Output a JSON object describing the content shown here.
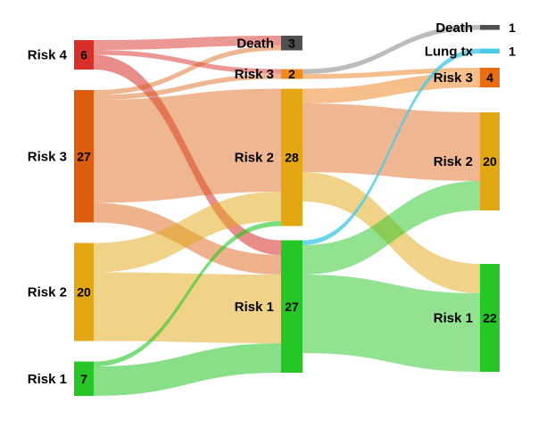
{
  "chart_data": {
    "type": "sankey",
    "title": "",
    "legend": "none",
    "columns": [
      {
        "id": "t1",
        "nodes": [
          {
            "name": "Risk 4",
            "value": 6,
            "color": "#d7302a"
          },
          {
            "name": "Risk 3",
            "value": 27,
            "color": "#dc5e0e"
          },
          {
            "name": "Risk 2",
            "value": 20,
            "color": "#e2a713"
          },
          {
            "name": "Risk 1",
            "value": 7,
            "color": "#25c625"
          }
        ]
      },
      {
        "id": "t2",
        "nodes": [
          {
            "name": "Death",
            "value": 3,
            "color": "#4f4f4f"
          },
          {
            "name": "Risk 3",
            "value": 2,
            "color": "#f08a18"
          },
          {
            "name": "Risk 2",
            "value": 28,
            "color": "#e2a713"
          },
          {
            "name": "Risk 1",
            "value": 27,
            "color": "#25c625"
          }
        ]
      },
      {
        "id": "t3",
        "nodes": [
          {
            "name": "Death",
            "value": 1,
            "color": "#4f4f4f"
          },
          {
            "name": "Lung tx",
            "value": 1,
            "color": "#49cbe3"
          },
          {
            "name": "Risk 3",
            "value": 4,
            "color": "#ea6d12"
          },
          {
            "name": "Risk 2",
            "value": 20,
            "color": "#e2a713"
          },
          {
            "name": "Risk 1",
            "value": 22,
            "color": "#25c625"
          }
        ]
      }
    ],
    "links": [
      {
        "from": {
          "col": "t1",
          "node": "Risk 4"
        },
        "to": {
          "col": "t2",
          "node": "Death"
        },
        "value": 2,
        "color": "#d7302a",
        "opacity": 0.5
      },
      {
        "from": {
          "col": "t1",
          "node": "Risk 4"
        },
        "to": {
          "col": "t2",
          "node": "Risk 3"
        },
        "value": 1,
        "color": "#d7302a",
        "opacity": 0.5
      },
      {
        "from": {
          "col": "t1",
          "node": "Risk 4"
        },
        "to": {
          "col": "t2",
          "node": "Risk 1"
        },
        "value": 3,
        "color": "#d7302a",
        "opacity": 0.55
      },
      {
        "from": {
          "col": "t1",
          "node": "Risk 3"
        },
        "to": {
          "col": "t2",
          "node": "Death"
        },
        "value": 1,
        "color": "#dc5e0e",
        "opacity": 0.45
      },
      {
        "from": {
          "col": "t1",
          "node": "Risk 3"
        },
        "to": {
          "col": "t2",
          "node": "Risk 3"
        },
        "value": 1,
        "color": "#dc5e0e",
        "opacity": 0.45
      },
      {
        "from": {
          "col": "t1",
          "node": "Risk 3"
        },
        "to": {
          "col": "t2",
          "node": "Risk 2"
        },
        "value": 21,
        "color": "#dc5e0e",
        "opacity": 0.45
      },
      {
        "from": {
          "col": "t1",
          "node": "Risk 3"
        },
        "to": {
          "col": "t2",
          "node": "Risk 1"
        },
        "value": 4,
        "color": "#dc5e0e",
        "opacity": 0.48
      },
      {
        "from": {
          "col": "t1",
          "node": "Risk 2"
        },
        "to": {
          "col": "t2",
          "node": "Risk 2"
        },
        "value": 6,
        "color": "#e2a713",
        "opacity": 0.5
      },
      {
        "from": {
          "col": "t1",
          "node": "Risk 2"
        },
        "to": {
          "col": "t2",
          "node": "Risk 1"
        },
        "value": 14,
        "color": "#e2a713",
        "opacity": 0.5
      },
      {
        "from": {
          "col": "t1",
          "node": "Risk 1"
        },
        "to": {
          "col": "t2",
          "node": "Risk 2"
        },
        "value": 1,
        "color": "#25c625",
        "opacity": 0.6
      },
      {
        "from": {
          "col": "t1",
          "node": "Risk 1"
        },
        "to": {
          "col": "t2",
          "node": "Risk 1"
        },
        "value": 6,
        "color": "#25c625",
        "opacity": 0.55
      },
      {
        "from": {
          "col": "t2",
          "node": "Risk 3"
        },
        "to": {
          "col": "t3",
          "node": "Death"
        },
        "value": 1,
        "color": "#b0b0b0",
        "opacity": 0.85
      },
      {
        "from": {
          "col": "t2",
          "node": "Risk 3"
        },
        "to": {
          "col": "t3",
          "node": "Risk 3"
        },
        "value": 1,
        "color": "#ee7d16",
        "opacity": 0.5
      },
      {
        "from": {
          "col": "t2",
          "node": "Risk 2"
        },
        "to": {
          "col": "t3",
          "node": "Risk 3"
        },
        "value": 3,
        "color": "#ee7d16",
        "opacity": 0.5
      },
      {
        "from": {
          "col": "t2",
          "node": "Risk 2"
        },
        "to": {
          "col": "t3",
          "node": "Risk 2"
        },
        "value": 14,
        "color": "#dc5e0e",
        "opacity": 0.45
      },
      {
        "from": {
          "col": "t2",
          "node": "Risk 2"
        },
        "to": {
          "col": "t3",
          "node": "Risk 1"
        },
        "value": 6,
        "color": "#e2a713",
        "opacity": 0.5
      },
      {
        "from": {
          "col": "t2",
          "node": "Risk 1"
        },
        "to": {
          "col": "t3",
          "node": "Lung tx"
        },
        "value": 1,
        "color": "#49cbe3",
        "opacity": 0.8
      },
      {
        "from": {
          "col": "t2",
          "node": "Risk 1"
        },
        "to": {
          "col": "t3",
          "node": "Risk 2"
        },
        "value": 6,
        "color": "#25c625",
        "opacity": 0.5
      },
      {
        "from": {
          "col": "t2",
          "node": "Risk 1"
        },
        "to": {
          "col": "t3",
          "node": "Risk 1"
        },
        "value": 16,
        "color": "#25c625",
        "opacity": 0.5
      }
    ]
  }
}
